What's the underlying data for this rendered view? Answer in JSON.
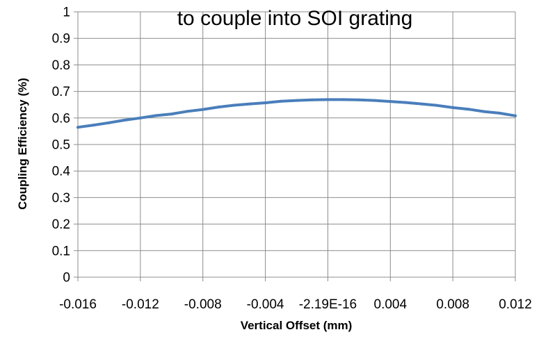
{
  "chart_data": {
    "type": "line",
    "title": "to couple into SOI grating",
    "xlabel": "Vertical Offset (mm)",
    "ylabel": "Coupling Efficiency (%)",
    "xlim": [
      -0.016,
      0.012
    ],
    "ylim": [
      0,
      1
    ],
    "grid": true,
    "legend": "none",
    "x_ticks": [
      -0.016,
      -0.012,
      -0.008,
      -0.004,
      0,
      0.004,
      0.008,
      0.012
    ],
    "x_tick_labels": [
      "-0.016",
      "-0.012",
      "-0.008",
      "-0.004",
      "-2.19E-16",
      "0.004",
      "0.008",
      "0.012"
    ],
    "y_ticks": [
      0,
      0.1,
      0.2,
      0.3,
      0.4,
      0.5,
      0.6,
      0.7,
      0.8,
      0.9,
      1
    ],
    "y_tick_labels": [
      "0",
      "0.1",
      "0.2",
      "0.3",
      "0.4",
      "0.5",
      "0.6",
      "0.7",
      "0.8",
      "0.9",
      "1"
    ],
    "series": [
      {
        "color": "#4a7ebb",
        "x": [
          -0.016,
          -0.015,
          -0.014,
          -0.013,
          -0.012,
          -0.011,
          -0.01,
          -0.009,
          -0.008,
          -0.007,
          -0.006,
          -0.005,
          -0.004,
          -0.003,
          -0.002,
          -0.001,
          0,
          0.001,
          0.002,
          0.003,
          0.004,
          0.005,
          0.006,
          0.007,
          0.008,
          0.009,
          0.01,
          0.011,
          0.012
        ],
        "y": [
          0.565,
          0.573,
          0.582,
          0.592,
          0.6,
          0.609,
          0.615,
          0.625,
          0.632,
          0.641,
          0.648,
          0.653,
          0.657,
          0.663,
          0.666,
          0.668,
          0.669,
          0.669,
          0.668,
          0.666,
          0.662,
          0.658,
          0.653,
          0.647,
          0.639,
          0.633,
          0.624,
          0.618,
          0.608
        ]
      }
    ]
  }
}
